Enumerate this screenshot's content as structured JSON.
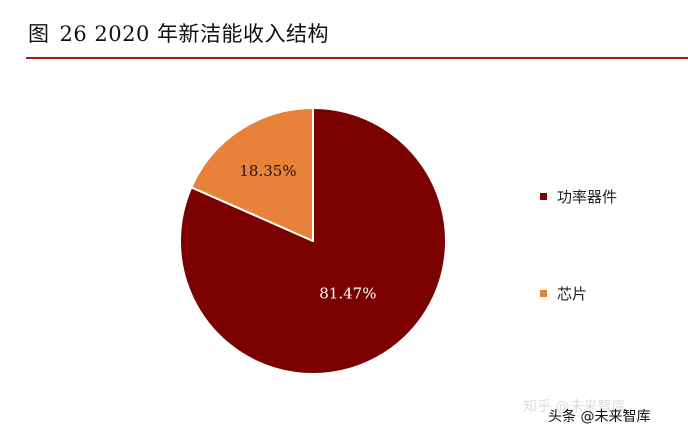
{
  "figure": {
    "label": "图",
    "title": "26 2020 年新洁能收入结构"
  },
  "chart_data": {
    "type": "pie",
    "title": "",
    "start_angle_deg": 0,
    "direction": "clockwise",
    "slices": [
      {
        "name": "功率器件",
        "value": 81.47,
        "label": "81.47%",
        "color": "#7b0000"
      },
      {
        "name": "芯片",
        "value": 18.35,
        "label": "18.35%",
        "color": "#e8823a"
      }
    ],
    "legend_position": "right"
  },
  "watermark": {
    "text": "知乎 @未来智库",
    "credit": "头条 @未来智库"
  }
}
